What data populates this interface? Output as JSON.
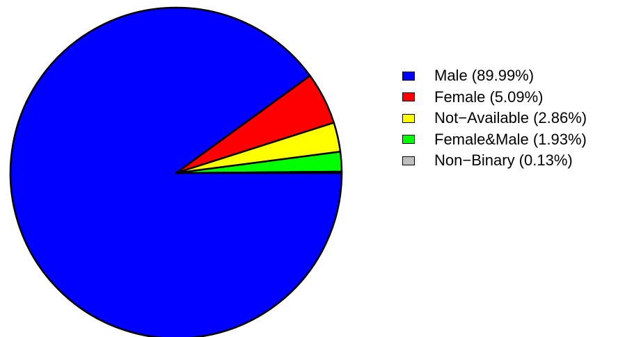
{
  "chart_data": {
    "type": "pie",
    "title": "",
    "slices": [
      {
        "label": "Male (89.99%)",
        "value": 89.99,
        "color": "#0000ff"
      },
      {
        "label": "Female (5.09%)",
        "value": 5.09,
        "color": "#ff0000"
      },
      {
        "label": "Not−Available (2.86%)",
        "value": 2.86,
        "color": "#ffff00"
      },
      {
        "label": "Female&Male (1.93%)",
        "value": 1.93,
        "color": "#00ff00"
      },
      {
        "label": "Non−Binary (0.13%)",
        "value": 0.13,
        "color": "#bebebe"
      }
    ],
    "start_angle": "3 o'clock",
    "direction": "clockwise",
    "legend_position": "right"
  }
}
